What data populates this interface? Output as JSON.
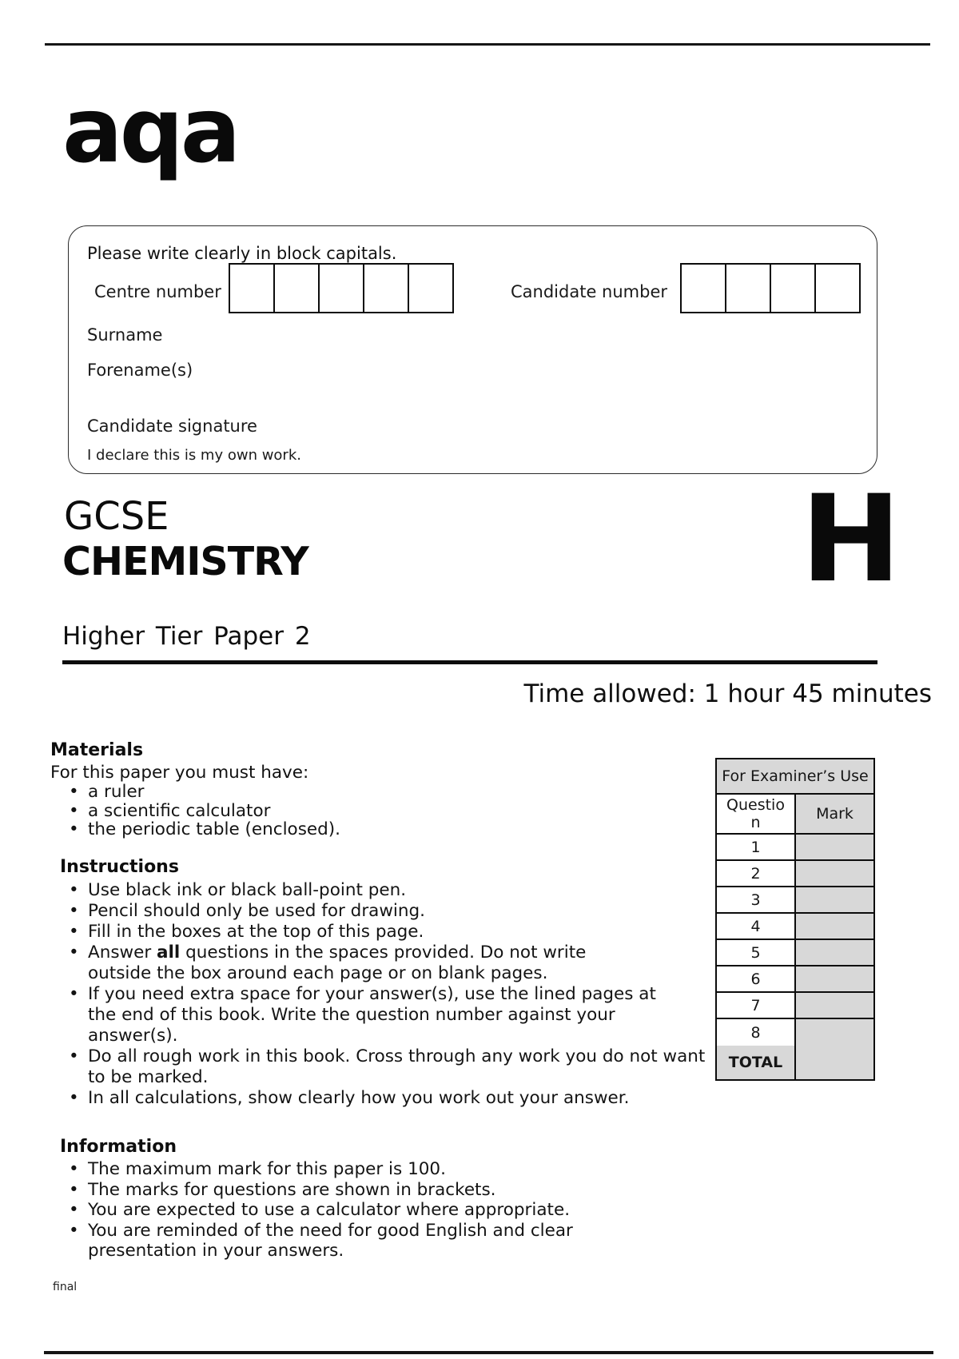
{
  "logo": "aqa",
  "candidate_box": {
    "instruction": "Please write clearly in block capitals.",
    "centre_number_label": "Centre number",
    "centre_number_cells": 5,
    "candidate_number_label": "Candidate number",
    "candidate_number_cells": 4,
    "surname_label": "Surname",
    "forename_label": "Forename(s)",
    "signature_label": "Candidate signature",
    "declaration": "I declare this is my own work."
  },
  "title": {
    "qualification": "GCSE",
    "subject": "CHEMISTRY",
    "tier": "Higher Tier Paper 2",
    "tier_letter": "H"
  },
  "time_allowed": "Time allowed: 1 hour 45 minutes",
  "materials": {
    "heading": "Materials",
    "intro": "For this paper you must have:",
    "items": [
      "a ruler",
      "a scientific calculator",
      "the periodic table (enclosed)."
    ]
  },
  "instructions": {
    "heading": "Instructions",
    "items": [
      "Use black ink or black ball-point pen.",
      "Pencil should only be used for drawing.",
      "Fill in the boxes at the top of this page.",
      [
        "Answer ",
        {
          "b": "all"
        },
        " questions in the spaces provided. Do not write\noutside the box around each page or on blank pages."
      ],
      "If you need extra space for your answer(s), use the lined pages at\nthe end of this book.  Write the question number against your\nanswer(s).",
      "Do all rough work in this book.  Cross through any work you do not want\nto be marked.",
      "In all calculations, show clearly how you work out your answer."
    ]
  },
  "information": {
    "heading": "Information",
    "items": [
      "The maximum mark for this paper is 100.",
      "The marks for questions are shown in brackets.",
      "You are expected to use a calculator where appropriate.",
      "You are reminded of the need for good English and clear\npresentation in your answers."
    ]
  },
  "examiner_table": {
    "title": "For Examiner’s Use",
    "col_question": "Question",
    "col_mark": "Mark",
    "rows": [
      "1",
      "2",
      "3",
      "4",
      "5",
      "6",
      "7",
      "8"
    ],
    "total_label": "TOTAL"
  },
  "footer_note": "final",
  "colors": {
    "table_grey": "#d8d8d8",
    "ink": "#111111"
  }
}
